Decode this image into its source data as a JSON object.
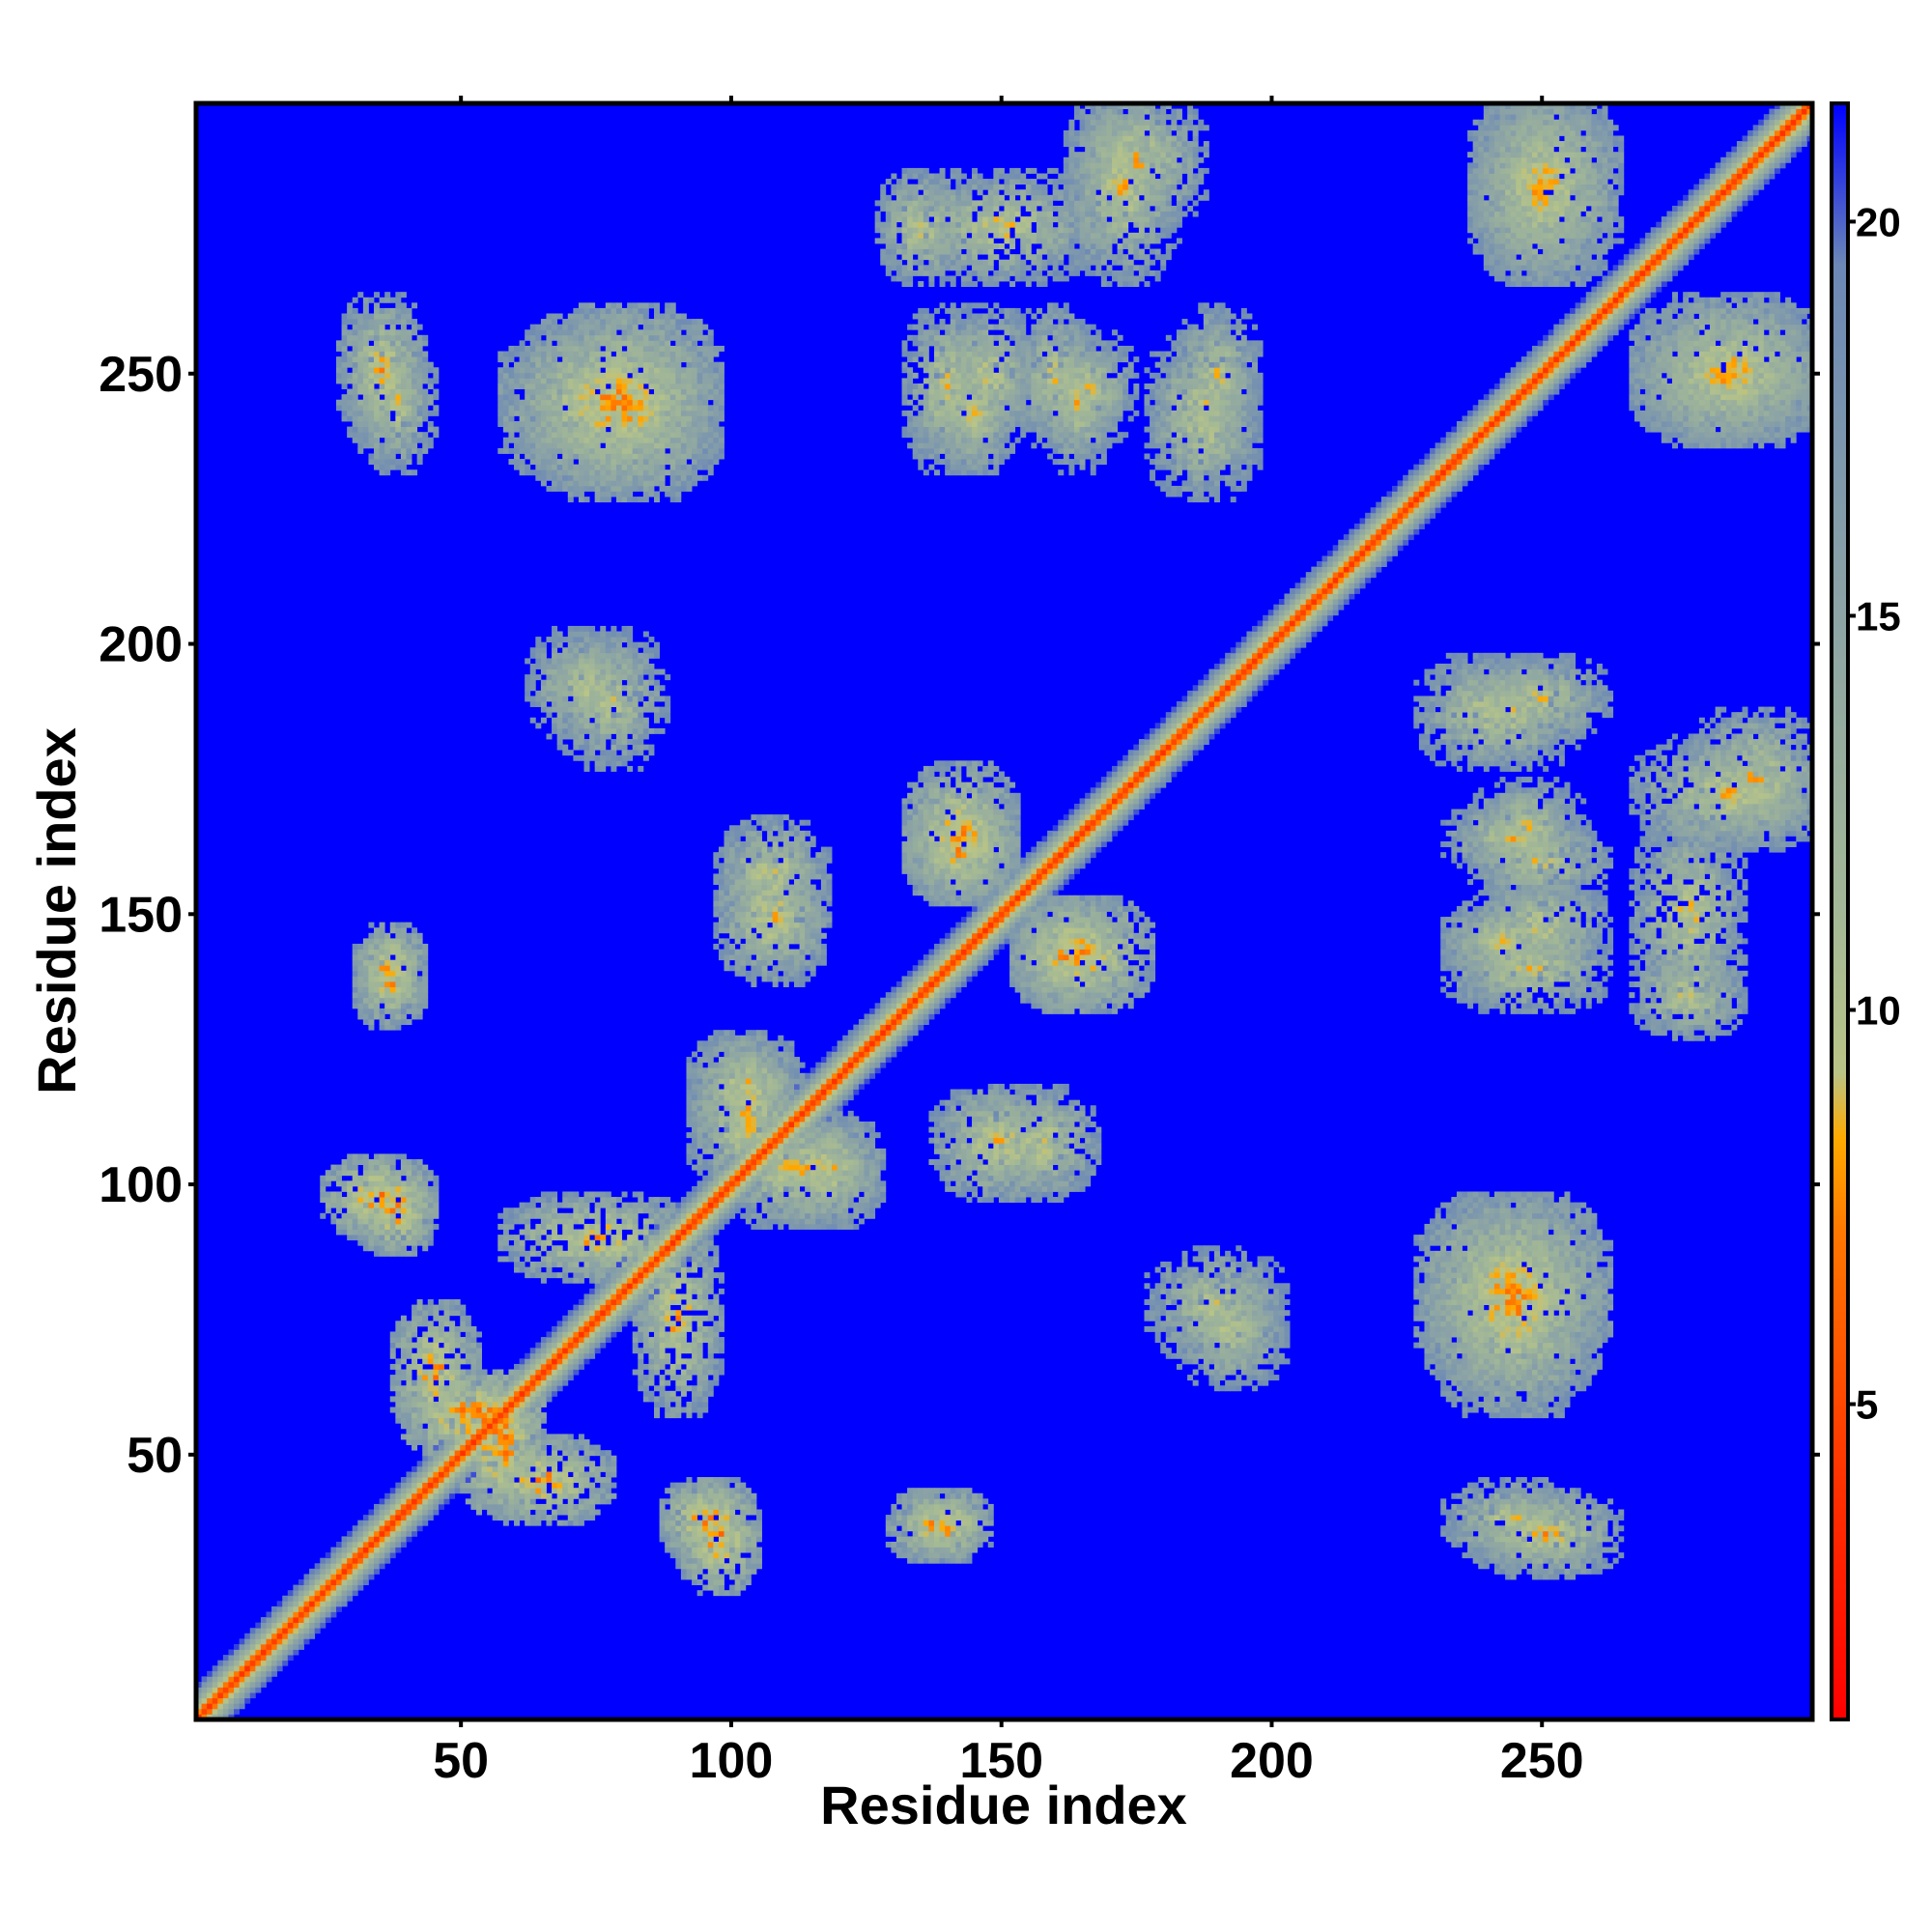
{
  "chart_data": {
    "type": "heatmap",
    "title": "",
    "xlabel": "Residue index",
    "ylabel": "Residue index",
    "n_residues": 300,
    "xlim": [
      1,
      300
    ],
    "ylim": [
      1,
      300
    ],
    "x_ticks": [
      50,
      100,
      150,
      200,
      250
    ],
    "y_ticks": [
      50,
      100,
      150,
      200,
      250
    ],
    "colorbar": {
      "range": [
        1,
        21.5
      ],
      "ticks": [
        5,
        10,
        15,
        20
      ],
      "colors": [
        "#ff0000",
        "#ff3300",
        "#ff7700",
        "#ffaa00",
        "#b9c486",
        "#a3b896",
        "#8aa2a6",
        "#6b88b6",
        "#0000ff"
      ],
      "stops": [
        0.0,
        0.15,
        0.3,
        0.36,
        0.4,
        0.5,
        0.7,
        0.9,
        1.0
      ]
    },
    "background_value": 21.5,
    "diagonal_value": 3.8,
    "contact_regions": [
      {
        "i": [
          42,
          62
        ],
        "j": [
          52,
          62
        ],
        "min_distance": 4.5
      },
      {
        "i": [
          27,
          42
        ],
        "j": [
          93,
          102
        ],
        "min_distance": 5.0
      },
      {
        "i": [
          33,
          40
        ],
        "j": [
          132,
          142
        ],
        "min_distance": 6.0
      },
      {
        "i": [
          30,
          40
        ],
        "j": [
          240,
          262
        ],
        "min_distance": 6.5
      },
      {
        "i": [
          90,
          100
        ],
        "j": [
          33,
          42
        ],
        "min_distance": 5.0
      },
      {
        "i": [
          135,
          145
        ],
        "j": [
          33,
          40
        ],
        "min_distance": 5.5
      },
      {
        "i": [
          60,
          95
        ],
        "j": [
          232,
          258
        ],
        "min_distance": 6.0
      },
      {
        "i": [
          65,
          80
        ],
        "j": [
          185,
          200
        ],
        "min_distance": 7.5
      },
      {
        "i": [
          100,
          115
        ],
        "j": [
          140,
          160
        ],
        "min_distance": 6.5
      },
      {
        "i": [
          135,
          150
        ],
        "j": [
          155,
          175
        ],
        "min_distance": 5.5
      },
      {
        "i": [
          155,
          170
        ],
        "j": [
          135,
          150
        ],
        "min_distance": 5.5
      },
      {
        "i": [
          150,
          165
        ],
        "j": [
          100,
          115
        ],
        "min_distance": 7.0
      },
      {
        "i": [
          180,
          200
        ],
        "j": [
          70,
          85
        ],
        "min_distance": 7.5
      },
      {
        "i": [
          135,
          145
        ],
        "j": [
          235,
          260
        ],
        "min_distance": 7.0
      },
      {
        "i": [
          155,
          165
        ],
        "j": [
          240,
          260
        ],
        "min_distance": 7.5
      },
      {
        "i": [
          185,
          195
        ],
        "j": [
          240,
          260
        ],
        "min_distance": 7.5
      },
      {
        "i": [
          230,
          260
        ],
        "j": [
          65,
          95
        ],
        "min_distance": 6.0
      },
      {
        "i": [
          235,
          255
        ],
        "j": [
          33,
          42
        ],
        "min_distance": 7.0
      },
      {
        "i": [
          235,
          250
        ],
        "j": [
          140,
          150
        ],
        "min_distance": 7.0
      },
      {
        "i": [
          235,
          255
        ],
        "j": [
          160,
          168
        ],
        "min_distance": 7.5
      },
      {
        "i": [
          230,
          250
        ],
        "j": [
          180,
          195
        ],
        "min_distance": 7.5
      },
      {
        "i": [
          270,
          285
        ],
        "j": [
          135,
          165
        ],
        "min_distance": 7.0
      },
      {
        "i": [
          280,
          300
        ],
        "j": [
          165,
          185
        ],
        "min_distance": 7.0
      },
      {
        "i": [
          270,
          300
        ],
        "j": [
          240,
          260
        ],
        "min_distance": 6.5
      },
      {
        "i": [
          240,
          262
        ],
        "j": [
          270,
          300
        ],
        "min_distance": 6.5
      },
      {
        "i": [
          140,
          155
        ],
        "j": [
          240,
          260
        ],
        "min_distance": 7.5
      },
      {
        "i": [
          160,
          172
        ],
        "j": [
          240,
          255
        ],
        "min_distance": 7.5
      },
      {
        "i": [
          180,
          195
        ],
        "j": [
          235,
          255
        ],
        "min_distance": 7.5
      },
      {
        "i": [
          130,
          140
        ],
        "j": [
          270,
          285
        ],
        "min_distance": 7.0
      },
      {
        "i": [
          165,
          180
        ],
        "j": [
          270,
          300
        ],
        "min_distance": 7.0
      },
      {
        "i": [
          95,
          110
        ],
        "j": [
          100,
          125
        ],
        "min_distance": 6.5
      },
      {
        "i": [
          110,
          125
        ],
        "j": [
          95,
          110
        ],
        "min_distance": 6.5
      },
      {
        "i": [
          85,
          95
        ],
        "j": [
          60,
          90
        ],
        "min_distance": 6.0
      },
      {
        "i": [
          55,
          75
        ],
        "j": [
          40,
          50
        ],
        "min_distance": 5.5
      }
    ]
  }
}
